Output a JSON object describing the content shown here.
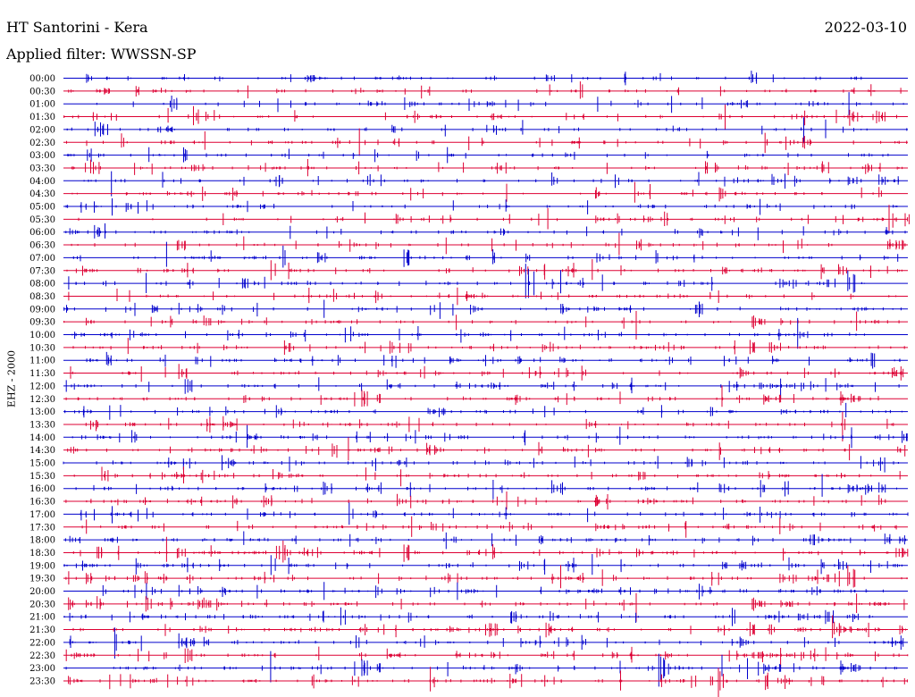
{
  "header": {
    "station": "HT Santorini - Kera",
    "date": "2022-03-10",
    "filter": "Applied filter: WWSSN-SP"
  },
  "channel": "EHZ - 2000",
  "colors": {
    "trace_a": "#0000cc",
    "trace_b": "#dd0033",
    "background": "#ffffff"
  },
  "rows": [
    "00:00",
    "00:30",
    "01:00",
    "01:30",
    "02:00",
    "02:30",
    "03:00",
    "03:30",
    "04:00",
    "04:30",
    "05:00",
    "05:30",
    "06:00",
    "06:30",
    "07:00",
    "07:30",
    "08:00",
    "08:30",
    "09:00",
    "09:30",
    "10:00",
    "10:30",
    "11:00",
    "11:30",
    "12:00",
    "12:30",
    "13:00",
    "13:30",
    "14:00",
    "14:30",
    "15:00",
    "15:30",
    "16:00",
    "16:30",
    "17:00",
    "17:30",
    "18:00",
    "18:30",
    "19:00",
    "19:30",
    "20:00",
    "20:30",
    "21:00",
    "21:30",
    "22:00",
    "22:30",
    "23:00",
    "23:30"
  ]
}
